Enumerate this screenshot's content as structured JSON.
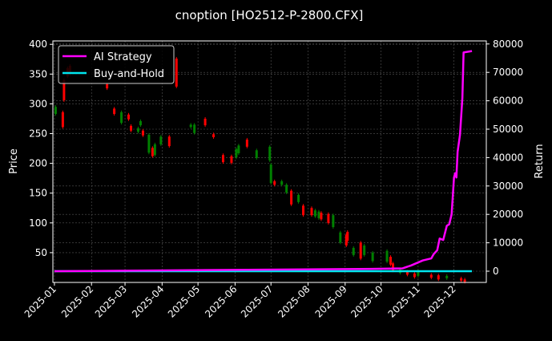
{
  "chart_data": {
    "type": "candlestick+line",
    "title": "cnoption [HO2512-P-2800.CFX]",
    "ylabel_left": "Price",
    "ylabel_right": "Return",
    "x_unit": "days since 2025-01-01",
    "xlim": [
      -1.3,
      361
    ],
    "ylim_left": [
      0,
      405.7
    ],
    "ylim_right": [
      -3955,
      81073
    ],
    "grid": true,
    "legend_position": "upper-left",
    "x_ticks": [
      {
        "day": 0,
        "label": "2025-01"
      },
      {
        "day": 31,
        "label": "2025-02"
      },
      {
        "day": 59,
        "label": "2025-03"
      },
      {
        "day": 90,
        "label": "2025-04"
      },
      {
        "day": 120,
        "label": "2025-05"
      },
      {
        "day": 151,
        "label": "2025-06"
      },
      {
        "day": 181,
        "label": "2025-07"
      },
      {
        "day": 212,
        "label": "2025-08"
      },
      {
        "day": 243,
        "label": "2025-09"
      },
      {
        "day": 273,
        "label": "2025-10"
      },
      {
        "day": 304,
        "label": "2025-11"
      },
      {
        "day": 334,
        "label": "2025-12"
      }
    ],
    "y_ticks_left": [
      50,
      100,
      150,
      200,
      250,
      300,
      350,
      400
    ],
    "y_ticks_right": [
      0,
      10000,
      20000,
      30000,
      40000,
      50000,
      60000,
      70000,
      80000
    ],
    "up_color": "#008000",
    "down_color": "#ff0000",
    "candles_day_open_close": [
      [
        1,
        283,
        295
      ],
      [
        7,
        286,
        261
      ],
      [
        8,
        340,
        306
      ],
      [
        11,
        360,
        346
      ],
      [
        13,
        364,
        350
      ],
      [
        44,
        333,
        326
      ],
      [
        50,
        292,
        283
      ],
      [
        56,
        268,
        286
      ],
      [
        62,
        282,
        274
      ],
      [
        64,
        263,
        255
      ],
      [
        70,
        253,
        259
      ],
      [
        72,
        264,
        271
      ],
      [
        74,
        255,
        247
      ],
      [
        79,
        218,
        248
      ],
      [
        82,
        226,
        212
      ],
      [
        84,
        214,
        232
      ],
      [
        89,
        232,
        245
      ],
      [
        96,
        245,
        229
      ],
      [
        102,
        376,
        329
      ],
      [
        114,
        261,
        265
      ],
      [
        117,
        251,
        265
      ],
      [
        126,
        275,
        264
      ],
      [
        133,
        249,
        244
      ],
      [
        141,
        214,
        202
      ],
      [
        148,
        212,
        201
      ],
      [
        152,
        210,
        224
      ],
      [
        154,
        217,
        230
      ],
      [
        161,
        240,
        228
      ],
      [
        169,
        209,
        222
      ],
      [
        180,
        205,
        228
      ],
      [
        181,
        167,
        198
      ],
      [
        184,
        170,
        164
      ],
      [
        190,
        164,
        170
      ],
      [
        194,
        151,
        164
      ],
      [
        198,
        154,
        131
      ],
      [
        204,
        135,
        147
      ],
      [
        208,
        129,
        113
      ],
      [
        215,
        125,
        113
      ],
      [
        218,
        111,
        121
      ],
      [
        221,
        108,
        119
      ],
      [
        223,
        117,
        106
      ],
      [
        229,
        115,
        100
      ],
      [
        233,
        93,
        113
      ],
      [
        239,
        67,
        84
      ],
      [
        244,
        80,
        62
      ],
      [
        245,
        85,
        70
      ],
      [
        250,
        46,
        58
      ],
      [
        256,
        67,
        40
      ],
      [
        259,
        46,
        62
      ],
      [
        266,
        36,
        50
      ],
      [
        278,
        35,
        53
      ],
      [
        281,
        43,
        30
      ],
      [
        283,
        32,
        20
      ],
      [
        289,
        16,
        22
      ],
      [
        295,
        18,
        13
      ],
      [
        301,
        15,
        9
      ],
      [
        304,
        11,
        19
      ],
      [
        315,
        13,
        8
      ],
      [
        321,
        12,
        5
      ],
      [
        328,
        7,
        11
      ],
      [
        340,
        7,
        3
      ],
      [
        343,
        5,
        1
      ]
    ],
    "series": [
      {
        "name": "AI Strategy",
        "color": "#ff00ff",
        "points": [
          [
            0,
            0
          ],
          [
            265,
            800
          ],
          [
            291,
            1000
          ],
          [
            298,
            2000
          ],
          [
            308,
            3800
          ],
          [
            315,
            4500
          ],
          [
            317,
            6000
          ],
          [
            320,
            7400
          ],
          [
            322,
            11500
          ],
          [
            325,
            11000
          ],
          [
            328,
            16000
          ],
          [
            330,
            16500
          ],
          [
            332,
            20000
          ],
          [
            334,
            33000
          ],
          [
            335,
            34500
          ],
          [
            336,
            33000
          ],
          [
            337,
            42000
          ],
          [
            339,
            48000
          ],
          [
            341,
            61000
          ],
          [
            342,
            77000
          ],
          [
            349,
            77500
          ]
        ]
      },
      {
        "name": "Buy-and-Hold",
        "color": "#00e5ee",
        "points": [
          [
            0,
            0
          ],
          [
            349,
            0
          ]
        ]
      }
    ]
  }
}
